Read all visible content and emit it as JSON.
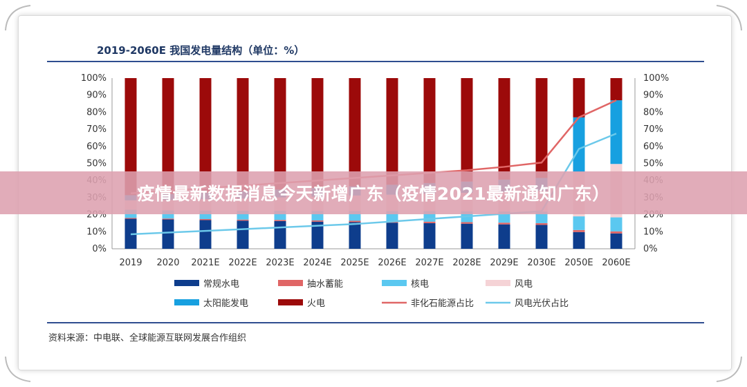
{
  "chart_data": {
    "type": "bar",
    "title": "2019-2060E 我国发电量结构（单位：%）",
    "categories": [
      "2019",
      "2020",
      "2021E",
      "2022E",
      "2023E",
      "2024E",
      "2025E",
      "2026E",
      "2027E",
      "2028E",
      "2029E",
      "2030E",
      "2050E",
      "2060E"
    ],
    "stacked": true,
    "ylim": [
      0,
      100
    ],
    "y_ticks_left": [
      "0%",
      "10%",
      "20%",
      "30%",
      "40%",
      "50%",
      "60%",
      "70%",
      "80%",
      "90%",
      "100%"
    ],
    "y_ticks_right": [
      "0%",
      "10%",
      "20%",
      "30%",
      "40%",
      "50%",
      "60%",
      "70%",
      "80%",
      "90%",
      "100%"
    ],
    "series": [
      {
        "name": "常规水电",
        "kind": "bar",
        "color": "#0e3d8c",
        "values": [
          17.6,
          17.2,
          16.8,
          16.5,
          16.2,
          15.9,
          15.6,
          15.3,
          15.0,
          14.7,
          14.3,
          14.0,
          9.8,
          9.0
        ]
      },
      {
        "name": "抽水蓄能",
        "kind": "bar",
        "color": "#e06666",
        "values": [
          0.5,
          0.5,
          0.6,
          0.6,
          0.7,
          0.7,
          0.8,
          0.8,
          0.9,
          0.9,
          1.0,
          1.0,
          1.2,
          1.2
        ]
      },
      {
        "name": "核电",
        "kind": "bar",
        "color": "#5bc8f0",
        "values": [
          4.8,
          4.8,
          5.0,
          5.2,
          5.4,
          5.6,
          5.8,
          6.0,
          6.2,
          6.4,
          6.6,
          6.8,
          8.0,
          8.2
        ]
      },
      {
        "name": "风电",
        "kind": "bar",
        "color": "#f5d3d6",
        "values": [
          5.5,
          6.1,
          6.6,
          7.2,
          7.8,
          8.4,
          9.0,
          9.6,
          10.2,
          10.8,
          11.4,
          12.0,
          26.0,
          31.3
        ]
      },
      {
        "name": "太阳能发电",
        "kind": "bar",
        "color": "#17a0e0",
        "values": [
          3.0,
          3.4,
          3.8,
          4.2,
          4.6,
          5.0,
          5.4,
          5.8,
          6.2,
          6.6,
          7.2,
          7.7,
          32.0,
          37.3
        ]
      },
      {
        "name": "火电",
        "kind": "bar",
        "color": "#9c0a0a",
        "values": [
          68.6,
          68.0,
          67.2,
          66.3,
          65.3,
          64.4,
          63.4,
          62.5,
          61.5,
          60.6,
          59.5,
          58.5,
          23.0,
          13.0
        ]
      },
      {
        "name": "非化石能源占比",
        "kind": "line",
        "color": "#e06666",
        "values": [
          32.5,
          34.0,
          35.5,
          37.0,
          38.5,
          40.0,
          41.5,
          43.0,
          44.5,
          46.0,
          48.0,
          50.5,
          77.0,
          87.0
        ]
      },
      {
        "name": "风电光伏占比",
        "kind": "line",
        "color": "#6cc9ea",
        "values": [
          8.5,
          9.5,
          10.5,
          11.5,
          12.5,
          13.5,
          14.5,
          16.0,
          17.5,
          19.0,
          20.5,
          22.0,
          58.5,
          67.5
        ]
      }
    ],
    "legend": {
      "position": "bottom",
      "columns": 4
    }
  },
  "source": "资料来源：中电联、全球能源互联网发展合作组织",
  "banner": "疫情最新数据消息今天新增广东（疫情2021最新通知广东）"
}
